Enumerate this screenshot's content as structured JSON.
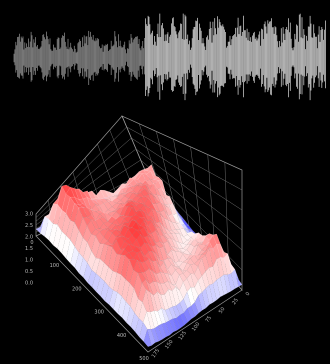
{
  "chart_data": [
    {
      "type": "area",
      "title": "",
      "xlabel": "",
      "ylabel": "",
      "grid": false,
      "legend": "none",
      "waveform_color": "#e8e8e8",
      "quiet_color": "#9a9a9a",
      "background": "#000000",
      "ylim": [
        -1,
        1
      ],
      "segments": [
        {
          "name": "",
          "x_range": [
            0,
            0.42
          ],
          "amplitude": 0.6
        },
        {
          "name": "",
          "x_range": [
            0.42,
            1.0
          ],
          "amplitude": 1.0
        }
      ]
    },
    {
      "type": "heatmap",
      "title": "",
      "xlabel": "",
      "ylabel": "",
      "surface": "3d",
      "grid": true,
      "legend": "none",
      "colormap": [
        "#2b2bff",
        "#ffffff",
        "#ff1a1a"
      ],
      "zlim": [
        0,
        3.0
      ],
      "z_ticks": [
        "0.0",
        "0.5",
        "1.0",
        "1.5",
        "2.0",
        "2.5",
        "3.0"
      ],
      "x_ticks": [
        "0",
        "100",
        "200",
        "300",
        "400",
        "500"
      ],
      "y_ticks": [
        "0",
        "25",
        "50",
        "75",
        "100",
        "125",
        "150",
        "175"
      ]
    }
  ]
}
